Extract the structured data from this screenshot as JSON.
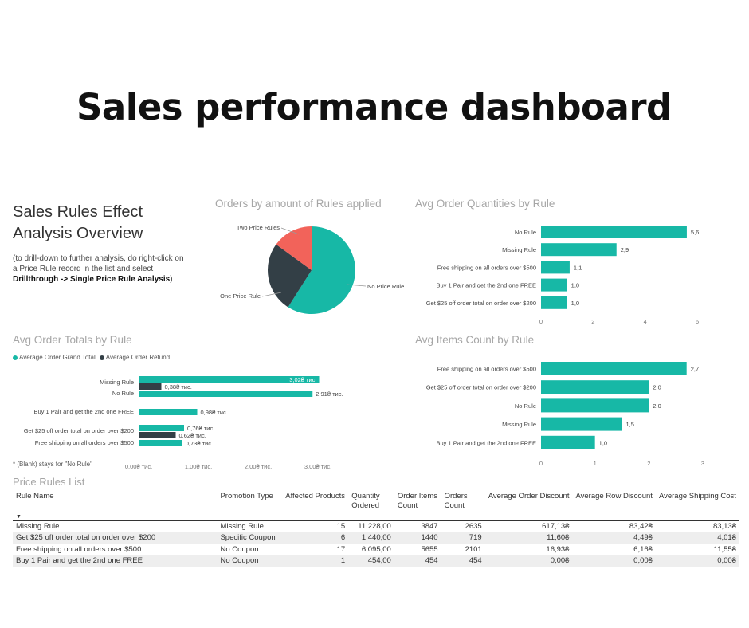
{
  "page": {
    "title": "Sales performance dashboard",
    "overview_title_line1": "Sales Rules Effect",
    "overview_title_line2": "Analysis Overview",
    "overview_note_prefix": "(to drill-down to further analysis, do right-click on a Price Rule record in the list and select ",
    "overview_note_bold": "Drillthrough -> Single Price Rule Analysis",
    "overview_note_suffix": ")",
    "footnote": "* (Blank) stays for \"No Rule\""
  },
  "colors": {
    "teal": "#17b8a6",
    "dark": "#333f46",
    "red": "#f2635a",
    "title_gray": "#a6a6a6"
  },
  "chart_data": [
    {
      "id": "pie",
      "type": "pie",
      "title": "Orders by amount of Rules applied",
      "labels": [
        "No Price Rule",
        "One Price Rule",
        "Two Price Rules"
      ],
      "values": [
        59,
        26,
        15
      ],
      "colors": [
        "#17b8a6",
        "#333f46",
        "#f2635a"
      ]
    },
    {
      "id": "qty",
      "type": "bar",
      "orientation": "horizontal",
      "title": "Avg Order Quantities by Rule",
      "categories": [
        "No Rule",
        "Missing Rule",
        "Free shipping on all orders over $500",
        "Buy 1 Pair and get the 2nd one FREE",
        "Get $25 off order total on order over $200"
      ],
      "values": [
        5.6,
        2.9,
        1.1,
        1.0,
        1.0
      ],
      "value_labels": [
        "5,6",
        "2,9",
        "1,1",
        "1,0",
        "1,0"
      ],
      "xlim": [
        0,
        6
      ],
      "ticks": [
        0,
        2,
        4,
        6
      ],
      "tick_labels": [
        "0",
        "2",
        "4",
        "6"
      ]
    },
    {
      "id": "totals",
      "type": "bar",
      "orientation": "horizontal",
      "title": "Avg Order Totals by Rule",
      "categories": [
        "Missing Rule",
        "No Rule",
        "Buy 1 Pair and get the 2nd one FREE",
        "Get $25 off order total on order over $200",
        "Free shipping on all orders over $500"
      ],
      "series": [
        {
          "name": "Average Order Grand Total",
          "color": "#17b8a6",
          "values": [
            3.02,
            2.91,
            0.98,
            0.76,
            0.73
          ],
          "value_labels": [
            "3,02₴ тис.",
            "2,91₴ тис.",
            "0,98₴ тис.",
            "0,76₴ тис.",
            "0,73₴ тис."
          ]
        },
        {
          "name": "Average Order Refund",
          "color": "#333f46",
          "values": [
            0.38,
            null,
            null,
            0.62,
            null
          ],
          "value_labels": [
            "0,38₴ тис.",
            "",
            "",
            "0,62₴ тис.",
            ""
          ]
        }
      ],
      "xlim": [
        0,
        3
      ],
      "ticks": [
        0,
        1,
        2,
        3
      ],
      "tick_labels": [
        "0,00₴ тис.",
        "1,00₴ тис.",
        "2,00₴ тис.",
        "3,00₴ тис."
      ]
    },
    {
      "id": "items",
      "type": "bar",
      "orientation": "horizontal",
      "title": "Avg Items Count by Rule",
      "categories": [
        "Free shipping on all orders over $500",
        "Get $25 off order total on order over $200",
        "No Rule",
        "Missing Rule",
        "Buy 1 Pair and get the 2nd one FREE"
      ],
      "values": [
        2.7,
        2.0,
        2.0,
        1.5,
        1.0
      ],
      "value_labels": [
        "2,7",
        "2,0",
        "2,0",
        "1,5",
        "1,0"
      ],
      "xlim": [
        0,
        3
      ],
      "ticks": [
        0,
        1,
        2,
        3
      ],
      "tick_labels": [
        "0",
        "1",
        "2",
        "3"
      ]
    }
  ],
  "table": {
    "title": "Price Rules List",
    "sort_indicator": "▼",
    "columns": [
      {
        "label": "Rule Name",
        "align": "left"
      },
      {
        "label": "Promotion Type",
        "align": "left"
      },
      {
        "label": "Affected Products",
        "align": "left"
      },
      {
        "label": "Quantity Ordered",
        "align": "left"
      },
      {
        "label": "Order Items Count",
        "align": "left"
      },
      {
        "label": "Orders Count",
        "align": "left"
      },
      {
        "label": "Average Order Discount",
        "align": "left"
      },
      {
        "label": "Average Row Discount",
        "align": "left"
      },
      {
        "label": "Average Shipping Cost",
        "align": "left"
      }
    ],
    "rows": [
      [
        "Missing Rule",
        "Missing Rule",
        "15",
        "11 228,00",
        "3847",
        "2635",
        "617,13₴",
        "83,42₴",
        "83,13₴"
      ],
      [
        "Get $25 off order total on order over $200",
        "Specific Coupon",
        "6",
        "1 440,00",
        "1440",
        "719",
        "11,60₴",
        "4,49₴",
        "4,01₴"
      ],
      [
        "Free shipping on all orders over $500",
        "No Coupon",
        "17",
        "6 095,00",
        "5655",
        "2101",
        "16,93₴",
        "6,16₴",
        "11,55₴"
      ],
      [
        "Buy 1 Pair and get the 2nd one FREE",
        "No Coupon",
        "1",
        "454,00",
        "454",
        "454",
        "0,00₴",
        "0,00₴",
        "0,00₴"
      ]
    ]
  }
}
